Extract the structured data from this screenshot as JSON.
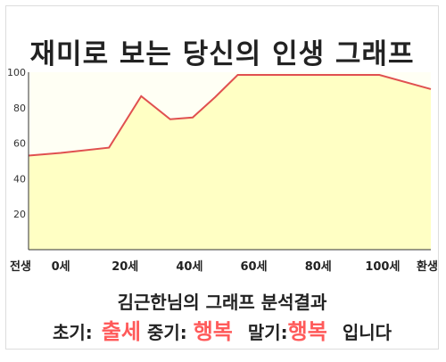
{
  "colors": {
    "accent": "#ff5a5a",
    "line": "#e05050",
    "fill": "#ffffc4",
    "plot_bg": "#fffff4"
  },
  "chart_data": {
    "type": "area",
    "title": "재미로 보는 당신의 인생 그래프",
    "x_ticks": [
      {
        "x": 0,
        "label": "전생"
      },
      {
        "x": 10,
        "label": "0세"
      },
      {
        "x": 30,
        "label": "20세"
      },
      {
        "x": 50,
        "label": "40세"
      },
      {
        "x": 70,
        "label": "60세"
      },
      {
        "x": 90,
        "label": "80세"
      },
      {
        "x": 110,
        "label": "100세"
      },
      {
        "x": 125,
        "label": "환생"
      }
    ],
    "xlim": [
      0,
      125
    ],
    "ylim": [
      0,
      100
    ],
    "y_ticks": [
      20,
      40,
      60,
      80,
      100
    ],
    "grid": false,
    "points": [
      {
        "x": 0,
        "y": 53
      },
      {
        "x": 10,
        "y": 54.5
      },
      {
        "x": 25,
        "y": 57.5
      },
      {
        "x": 35,
        "y": 86.5
      },
      {
        "x": 44,
        "y": 73.5
      },
      {
        "x": 51,
        "y": 74.5
      },
      {
        "x": 58,
        "y": 86
      },
      {
        "x": 65,
        "y": 98.5
      },
      {
        "x": 90,
        "y": 98.5
      },
      {
        "x": 109,
        "y": 98.5
      },
      {
        "x": 125,
        "y": 90.5
      }
    ]
  },
  "summary": {
    "title": "김근한님의 그래프 분석결과",
    "early_label": "초기:",
    "early_value": "출세",
    "mid_label": "중기:",
    "mid_value": "행복",
    "late_label": "말기:",
    "late_value": "행복",
    "suffix": "입니다"
  }
}
